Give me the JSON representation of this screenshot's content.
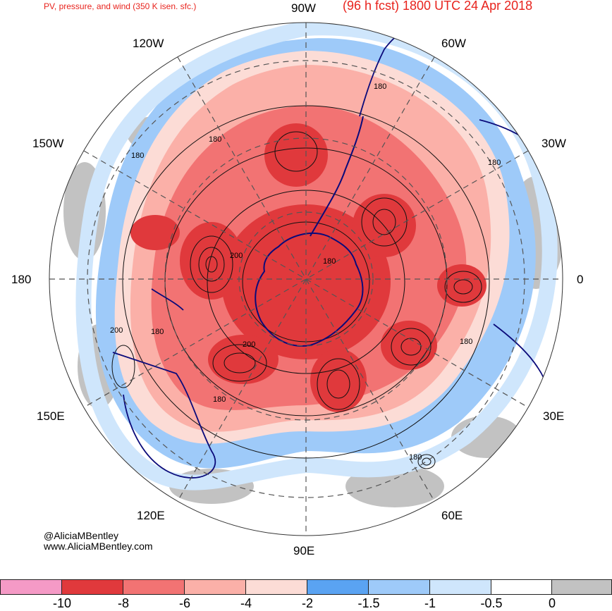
{
  "header": {
    "title_left": "PV, pressure, and wind (350 K isen. sfc.)",
    "title_right": "(96 h fcst) 1800 UTC 24 Apr 2018"
  },
  "longitude_labels": {
    "w90": "90W",
    "w60": "60W",
    "w120": "120W",
    "w150": "150W",
    "w30": "30W",
    "l180": "180",
    "l0": "0",
    "e150": "150E",
    "e30": "30E",
    "e120": "120E",
    "e60": "60E",
    "e90": "90E"
  },
  "contour_labels": [
    "180",
    "180",
    "180",
    "180",
    "200",
    "200",
    "180",
    "200",
    "180",
    "180",
    "180",
    "180"
  ],
  "credits": {
    "handle": "@AliciaMBentley",
    "website": "www.AliciaMBentley.com"
  },
  "colorbar": {
    "colors": [
      "#f59ac6",
      "#e0393c",
      "#f27373",
      "#fbb0a8",
      "#fcdcd6",
      "#5aa3f2",
      "#9ecaf9",
      "#cfe6fc",
      "#ffffff",
      "#c2c2c2"
    ],
    "ticks": [
      "-10",
      "-8",
      "-6",
      "-4",
      "-2",
      "-1.5",
      "-1",
      "-0.5",
      "0"
    ]
  },
  "map_colors": {
    "strong_negative": "#e0393c",
    "moderate_negative": "#f27373",
    "weak_negative": "#fbb0a8",
    "very_weak_negative": "#fcdcd6",
    "blue_band": "#9ecaf9",
    "light_blue": "#cfe6fc",
    "gray_positive": "#c2c2c2",
    "coastline": "#0a0a7a"
  }
}
